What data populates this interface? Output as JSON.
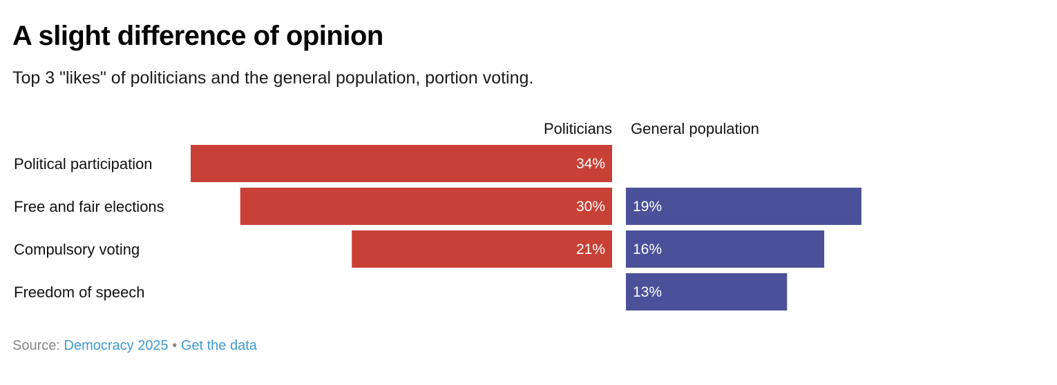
{
  "chart_data": {
    "type": "bar",
    "title": "A slight difference of opinion",
    "subtitle": "Top 3 \"likes\" of politicians and the general population, portion voting.",
    "categories": [
      "Political participation",
      "Free and fair elections",
      "Compulsory voting",
      "Freedom of speech"
    ],
    "series": [
      {
        "name": "Politicians",
        "values": [
          34,
          30,
          21,
          null
        ],
        "labels": [
          "34%",
          "30%",
          "21%",
          ""
        ],
        "color": "#c94136"
      },
      {
        "name": "General population",
        "values": [
          null,
          19,
          16,
          13
        ],
        "labels": [
          "",
          "19%",
          "16%",
          "13%"
        ],
        "color": "#4a5198"
      }
    ],
    "unit": "%"
  },
  "footer": {
    "source_label": "Source:",
    "source_link": "Democracy 2025",
    "separator": "•",
    "data_link": "Get the data"
  }
}
